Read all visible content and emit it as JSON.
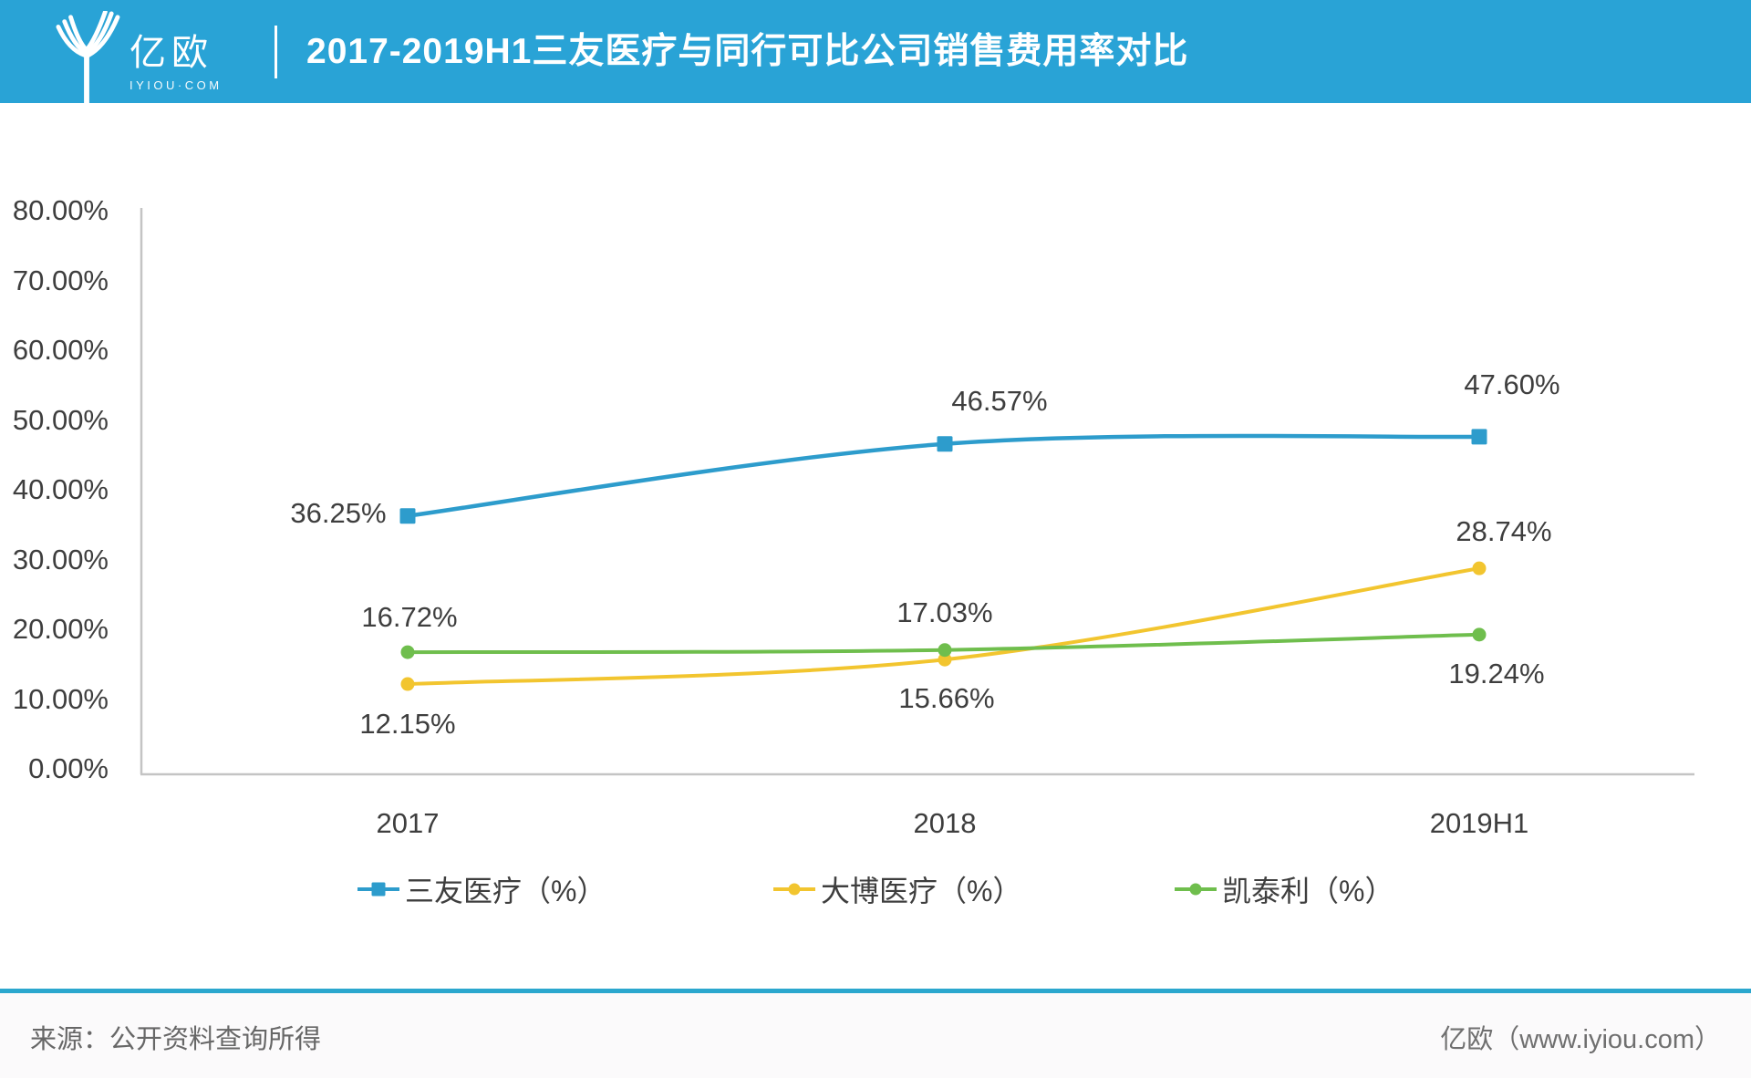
{
  "header": {
    "logo": {
      "name": "亿欧",
      "sub": "IYIOU·COM"
    },
    "title": "2017-2019H1三友医疗与同行可比公司销售费用率对比",
    "bg_color": "#29a3d6"
  },
  "chart_data": {
    "type": "line",
    "title": "2017-2019H1三友医疗与同行可比公司销售费用率对比",
    "categories": [
      "2017",
      "2018",
      "2019H1"
    ],
    "series": [
      {
        "name": "三友医疗（%）",
        "values": [
          36.25,
          46.57,
          47.6
        ],
        "labels": [
          "36.25%",
          "46.57%",
          "47.60%"
        ],
        "color": "#2d9ccc",
        "marker": "square"
      },
      {
        "name": "大博医疗（%）",
        "values": [
          12.15,
          15.66,
          28.74
        ],
        "labels": [
          "12.15%",
          "15.66%",
          "28.74%"
        ],
        "color": "#f2c52f",
        "marker": "circle"
      },
      {
        "name": "凯泰利（%）",
        "values": [
          16.72,
          17.03,
          19.24
        ],
        "labels": [
          "16.72%",
          "17.03%",
          "19.24%"
        ],
        "color": "#6fbe4d",
        "marker": "circle"
      }
    ],
    "ylim": [
      0,
      80
    ],
    "ytick_step": 10,
    "ytick_labels": [
      "0.00%",
      "10.00%",
      "20.00%",
      "30.00%",
      "40.00%",
      "50.00%",
      "60.00%",
      "70.00%",
      "80.00%"
    ],
    "grid": false,
    "smooth": true,
    "legend_position": "bottom",
    "axis_color": "#c4c4c4",
    "text_color": "#3e3e3e",
    "label_offsets": [
      [
        [
          -76,
          -3
        ],
        [
          60,
          -47
        ],
        [
          36,
          -57
        ]
      ],
      [
        [
          0,
          44
        ],
        [
          2,
          43
        ],
        [
          27,
          -40
        ]
      ],
      [
        [
          2,
          -38
        ],
        [
          0,
          -41
        ],
        [
          19,
          43
        ]
      ]
    ]
  },
  "footer": {
    "source": "来源：公开资料查询所得",
    "brand": "亿欧（www.iyiou.com）",
    "divider_color": "#2ba7ce"
  }
}
